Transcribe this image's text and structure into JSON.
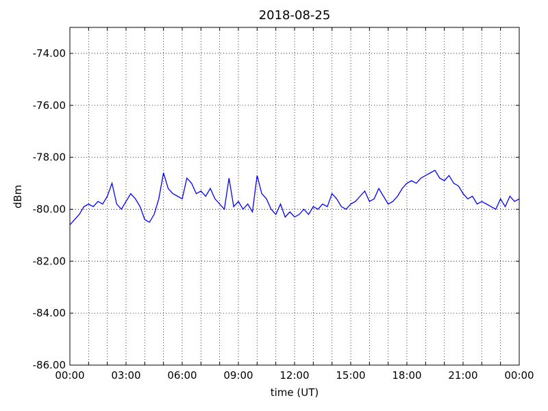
{
  "chart_data": {
    "type": "line",
    "title": "2018-08-25",
    "xlabel": "time (UT)",
    "ylabel": "dBm",
    "x": [
      0,
      0.25,
      0.5,
      0.75,
      1,
      1.25,
      1.5,
      1.75,
      2,
      2.25,
      2.5,
      2.75,
      3,
      3.25,
      3.5,
      3.75,
      4,
      4.25,
      4.5,
      4.75,
      5,
      5.25,
      5.5,
      5.75,
      6,
      6.25,
      6.5,
      6.75,
      7,
      7.25,
      7.5,
      7.75,
      8,
      8.25,
      8.5,
      8.75,
      9,
      9.25,
      9.5,
      9.75,
      10,
      10.25,
      10.5,
      10.75,
      11,
      11.25,
      11.5,
      11.75,
      12,
      12.25,
      12.5,
      12.75,
      13,
      13.25,
      13.5,
      13.75,
      14,
      14.25,
      14.5,
      14.75,
      15,
      15.25,
      15.5,
      15.75,
      16,
      16.25,
      16.5,
      16.75,
      17,
      17.25,
      17.5,
      17.75,
      18,
      18.25,
      18.5,
      18.75,
      19,
      19.25,
      19.5,
      19.75,
      20,
      20.25,
      20.5,
      20.75,
      21,
      21.25,
      21.5,
      21.75,
      22,
      22.25,
      22.5,
      22.75,
      23,
      23.25,
      23.5,
      23.75,
      24
    ],
    "series": [
      {
        "name": "dBm",
        "color": "#0000ff",
        "values": [
          -80.6,
          -80.4,
          -80.2,
          -79.9,
          -79.8,
          -79.9,
          -79.7,
          -79.8,
          -79.5,
          -79.0,
          -79.8,
          -80.0,
          -79.7,
          -79.4,
          -79.6,
          -79.9,
          -80.4,
          -80.5,
          -80.2,
          -79.6,
          -78.6,
          -79.2,
          -79.4,
          -79.5,
          -79.6,
          -78.8,
          -79.0,
          -79.4,
          -79.3,
          -79.5,
          -79.2,
          -79.6,
          -79.8,
          -80.0,
          -78.8,
          -79.9,
          -79.7,
          -80.0,
          -79.8,
          -80.1,
          -78.7,
          -79.4,
          -79.6,
          -80.0,
          -80.2,
          -79.8,
          -80.3,
          -80.1,
          -80.3,
          -80.2,
          -80.0,
          -80.2,
          -79.9,
          -80.0,
          -79.8,
          -79.9,
          -79.4,
          -79.6,
          -79.9,
          -80.0,
          -79.8,
          -79.7,
          -79.5,
          -79.3,
          -79.7,
          -79.6,
          -79.2,
          -79.5,
          -79.8,
          -79.7,
          -79.5,
          -79.2,
          -79.0,
          -78.9,
          -79.0,
          -78.8,
          -78.7,
          -78.6,
          -78.5,
          -78.8,
          -78.9,
          -78.7,
          -79.0,
          -79.1,
          -79.4,
          -79.6,
          -79.5,
          -79.8,
          -79.7,
          -79.8,
          -79.9,
          -80.0,
          -79.6,
          -79.9,
          -79.5,
          -79.7,
          -79.6
        ]
      }
    ],
    "xlim": [
      0,
      24
    ],
    "xticks": [
      {
        "value": 0,
        "label": "00:00"
      },
      {
        "value": 3,
        "label": "03:00"
      },
      {
        "value": 6,
        "label": "06:00"
      },
      {
        "value": 9,
        "label": "09:00"
      },
      {
        "value": 12,
        "label": "12:00"
      },
      {
        "value": 15,
        "label": "15:00"
      },
      {
        "value": 18,
        "label": "18:00"
      },
      {
        "value": 21,
        "label": "21:00"
      },
      {
        "value": 24,
        "label": "00:00"
      }
    ],
    "xminorticks": [
      1,
      2,
      4,
      5,
      7,
      8,
      10,
      11,
      13,
      14,
      16,
      17,
      19,
      20,
      22,
      23
    ],
    "ylim": [
      -86,
      -73
    ],
    "yticks": [
      {
        "value": -86,
        "label": "-86.00"
      },
      {
        "value": -84,
        "label": "-84.00"
      },
      {
        "value": -82,
        "label": "-82.00"
      },
      {
        "value": -80,
        "label": "-80.00"
      },
      {
        "value": -78,
        "label": "-78.00"
      },
      {
        "value": -76,
        "label": "-76.00"
      },
      {
        "value": -74,
        "label": "-74.00"
      }
    ],
    "grid": true
  }
}
